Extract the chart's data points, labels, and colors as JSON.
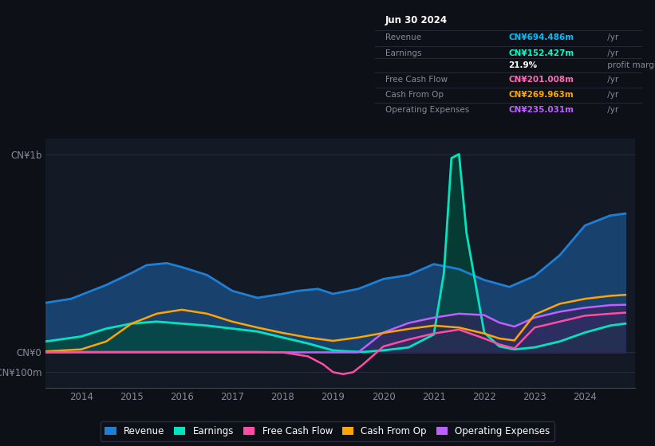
{
  "bg_color": "#0d1117",
  "plot_bg_color": "#131925",
  "title": "Jun 30 2024",
  "info_box_title": "Jun 30 2024",
  "info_rows": [
    {
      "label": "Revenue",
      "value": "CN¥694.486m",
      "suffix": " /yr",
      "color": "#00bfff"
    },
    {
      "label": "Earnings",
      "value": "CN¥152.427m",
      "suffix": " /yr",
      "color": "#00ffcc"
    },
    {
      "label": "",
      "value": "21.9%",
      "suffix": " profit margin",
      "color": "#ffffff"
    },
    {
      "label": "Free Cash Flow",
      "value": "CN¥201.008m",
      "suffix": " /yr",
      "color": "#ff69b4"
    },
    {
      "label": "Cash From Op",
      "value": "CN¥269.963m",
      "suffix": " /yr",
      "color": "#ffa500"
    },
    {
      "label": "Operating Expenses",
      "value": "CN¥235.031m",
      "suffix": " /yr",
      "color": "#bf5fff"
    }
  ],
  "ylabel_top": "CN¥1b",
  "ylabel_zero": "CN¥0",
  "ylabel_neg": "-CN¥100m",
  "xlim_start": 2013.3,
  "xlim_end": 2025.0,
  "ylim_bottom": -180,
  "ylim_top": 1080,
  "y_top_line": 1000,
  "y_zero": 0,
  "y_neg_line": -100,
  "xtick_years": [
    2014,
    2015,
    2016,
    2017,
    2018,
    2019,
    2020,
    2021,
    2022,
    2023,
    2024
  ],
  "series": {
    "revenue": {
      "color": "#1e7fd4",
      "fill_color": "#1a4a7a",
      "fill_alpha": 0.85,
      "linewidth": 2.0,
      "label": "Revenue",
      "x": [
        2013.3,
        2013.8,
        2014.0,
        2014.5,
        2015.0,
        2015.3,
        2015.7,
        2016.0,
        2016.5,
        2017.0,
        2017.5,
        2018.0,
        2018.3,
        2018.7,
        2019.0,
        2019.5,
        2020.0,
        2020.5,
        2021.0,
        2021.5,
        2022.0,
        2022.5,
        2023.0,
        2023.5,
        2024.0,
        2024.5,
        2024.8
      ],
      "y": [
        250,
        270,
        290,
        340,
        400,
        440,
        450,
        430,
        390,
        310,
        275,
        295,
        310,
        320,
        295,
        320,
        370,
        390,
        445,
        420,
        365,
        330,
        385,
        490,
        640,
        690,
        700
      ]
    },
    "earnings": {
      "color": "#00e5c0",
      "fill_color": "#004a3a",
      "fill_alpha": 0.7,
      "linewidth": 2.0,
      "label": "Earnings",
      "x": [
        2013.3,
        2014.0,
        2014.5,
        2015.0,
        2015.5,
        2016.0,
        2016.5,
        2017.0,
        2017.5,
        2018.0,
        2018.5,
        2019.0,
        2019.3,
        2019.6,
        2020.0,
        2020.5,
        2021.0,
        2021.2,
        2021.35,
        2021.5,
        2021.65,
        2022.0,
        2022.3,
        2022.6,
        2023.0,
        2023.5,
        2024.0,
        2024.5,
        2024.8
      ],
      "y": [
        55,
        80,
        120,
        145,
        155,
        145,
        135,
        120,
        105,
        75,
        45,
        10,
        5,
        2,
        10,
        25,
        90,
        400,
        980,
        1000,
        600,
        100,
        30,
        15,
        25,
        55,
        100,
        135,
        145
      ]
    },
    "free_cash_flow": {
      "color": "#ff4da6",
      "fill_alpha": 0.0,
      "linewidth": 1.8,
      "label": "Free Cash Flow",
      "x": [
        2013.3,
        2014.0,
        2014.5,
        2015.0,
        2015.5,
        2016.0,
        2016.5,
        2017.0,
        2017.5,
        2018.0,
        2018.5,
        2018.8,
        2019.0,
        2019.2,
        2019.4,
        2019.6,
        2020.0,
        2020.5,
        2021.0,
        2021.5,
        2022.0,
        2022.3,
        2022.6,
        2023.0,
        2023.5,
        2024.0,
        2024.5,
        2024.8
      ],
      "y": [
        0,
        2,
        2,
        2,
        2,
        2,
        2,
        2,
        2,
        0,
        -20,
        -60,
        -100,
        -110,
        -100,
        -60,
        30,
        65,
        95,
        115,
        70,
        40,
        20,
        125,
        155,
        185,
        195,
        200
      ]
    },
    "cash_from_op": {
      "color": "#ffa500",
      "fill_alpha": 0.0,
      "linewidth": 1.8,
      "label": "Cash From Op",
      "x": [
        2013.3,
        2014.0,
        2014.5,
        2015.0,
        2015.5,
        2016.0,
        2016.5,
        2017.0,
        2017.5,
        2018.0,
        2018.5,
        2019.0,
        2019.5,
        2020.0,
        2020.5,
        2021.0,
        2021.5,
        2022.0,
        2022.3,
        2022.6,
        2023.0,
        2023.5,
        2024.0,
        2024.5,
        2024.8
      ],
      "y": [
        5,
        15,
        55,
        145,
        195,
        215,
        195,
        155,
        125,
        98,
        75,
        58,
        75,
        98,
        118,
        135,
        125,
        95,
        70,
        60,
        190,
        245,
        270,
        285,
        290
      ]
    },
    "operating_expenses": {
      "color": "#bf5fff",
      "fill_color": "#3a1f5a",
      "fill_alpha": 0.6,
      "linewidth": 1.8,
      "label": "Operating Expenses",
      "x": [
        2013.3,
        2014.0,
        2015.0,
        2016.0,
        2017.0,
        2018.0,
        2019.0,
        2019.5,
        2020.0,
        2020.5,
        2021.0,
        2021.5,
        2022.0,
        2022.3,
        2022.6,
        2023.0,
        2023.5,
        2024.0,
        2024.5,
        2024.8
      ],
      "y": [
        0,
        0,
        0,
        0,
        0,
        0,
        0,
        0,
        100,
        148,
        175,
        195,
        188,
        150,
        130,
        175,
        205,
        225,
        238,
        240
      ]
    }
  },
  "legend": [
    {
      "label": "Revenue",
      "color": "#1e7fd4"
    },
    {
      "label": "Earnings",
      "color": "#00e5c0"
    },
    {
      "label": "Free Cash Flow",
      "color": "#ff4da6"
    },
    {
      "label": "Cash From Op",
      "color": "#ffa500"
    },
    {
      "label": "Operating Expenses",
      "color": "#bf5fff"
    }
  ],
  "grid_color": "#2a3040",
  "text_color": "#888899",
  "zero_line_color": "#444455",
  "divider_color": "#333344",
  "info_bg": "#000000",
  "info_label_color": "#888899",
  "info_white_color": "#cccccc"
}
